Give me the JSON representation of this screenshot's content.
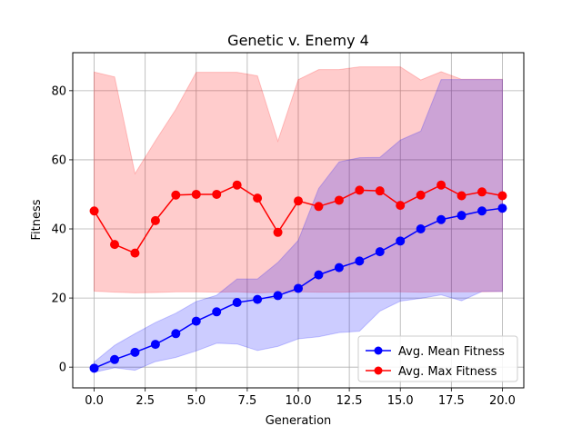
{
  "chart_data": {
    "type": "line",
    "title": "Genetic v. Enemy 4",
    "xlabel": "Generation",
    "ylabel": "Fitness",
    "xlim": [
      -1.05,
      21.05
    ],
    "ylim": [
      -6.0,
      91.0
    ],
    "x_ticks": [
      0.0,
      2.5,
      5.0,
      7.5,
      10.0,
      12.5,
      15.0,
      17.5,
      20.0
    ],
    "x_tick_labels": [
      "0.0",
      "2.5",
      "5.0",
      "7.5",
      "10.0",
      "12.5",
      "15.0",
      "17.5",
      "20.0"
    ],
    "y_ticks": [
      0,
      20,
      40,
      60,
      80
    ],
    "y_tick_labels": [
      "0",
      "20",
      "40",
      "60",
      "80"
    ],
    "grid": true,
    "legend_position": "lower-right",
    "x": [
      0,
      1,
      2,
      3,
      4,
      5,
      6,
      7,
      8,
      9,
      10,
      11,
      12,
      13,
      14,
      15,
      16,
      17,
      18,
      19,
      20
    ],
    "series": [
      {
        "name": "Avg. Mean Fitness",
        "color": "#0000ff",
        "values": [
          -0.3,
          2.2,
          4.3,
          6.6,
          9.7,
          13.3,
          16.0,
          18.7,
          19.6,
          20.7,
          22.8,
          26.7,
          28.8,
          30.7,
          33.4,
          36.5,
          40.0,
          42.7,
          43.9,
          45.2,
          46.0
        ],
        "band_low": [
          -1.5,
          -0.2,
          -0.9,
          1.6,
          2.8,
          4.7,
          6.9,
          6.7,
          4.8,
          6.0,
          8.2,
          8.8,
          10.0,
          10.4,
          16.2,
          19.1,
          19.9,
          20.9,
          19.2,
          21.9,
          21.9
        ],
        "band_high": [
          1.5,
          6.3,
          9.7,
          12.9,
          15.6,
          19.0,
          20.8,
          25.5,
          25.5,
          30.3,
          36.7,
          51.7,
          59.4,
          60.6,
          60.7,
          65.7,
          68.3,
          83.2,
          83.2,
          83.2,
          83.2
        ]
      },
      {
        "name": "Avg. Max Fitness",
        "color": "#ff0000",
        "values": [
          45.2,
          35.5,
          33.0,
          42.4,
          49.8,
          50.0,
          50.0,
          52.7,
          48.9,
          39.0,
          48.1,
          46.5,
          48.3,
          51.2,
          51.0,
          46.8,
          49.8,
          52.7,
          49.6,
          50.7,
          49.6
        ],
        "band_low": [
          22.0,
          21.7,
          21.5,
          21.6,
          21.8,
          21.8,
          21.7,
          21.8,
          21.5,
          21.7,
          21.8,
          21.7,
          21.7,
          21.8,
          21.8,
          21.8,
          21.7,
          21.8,
          21.8,
          21.8,
          21.9
        ],
        "band_high": [
          85.4,
          84.0,
          56.0,
          65.5,
          74.6,
          85.3,
          85.3,
          85.3,
          84.3,
          65.4,
          83.2,
          86.1,
          86.1,
          86.9,
          86.9,
          86.9,
          83.1,
          85.5,
          83.3,
          83.3,
          83.3
        ]
      }
    ]
  }
}
